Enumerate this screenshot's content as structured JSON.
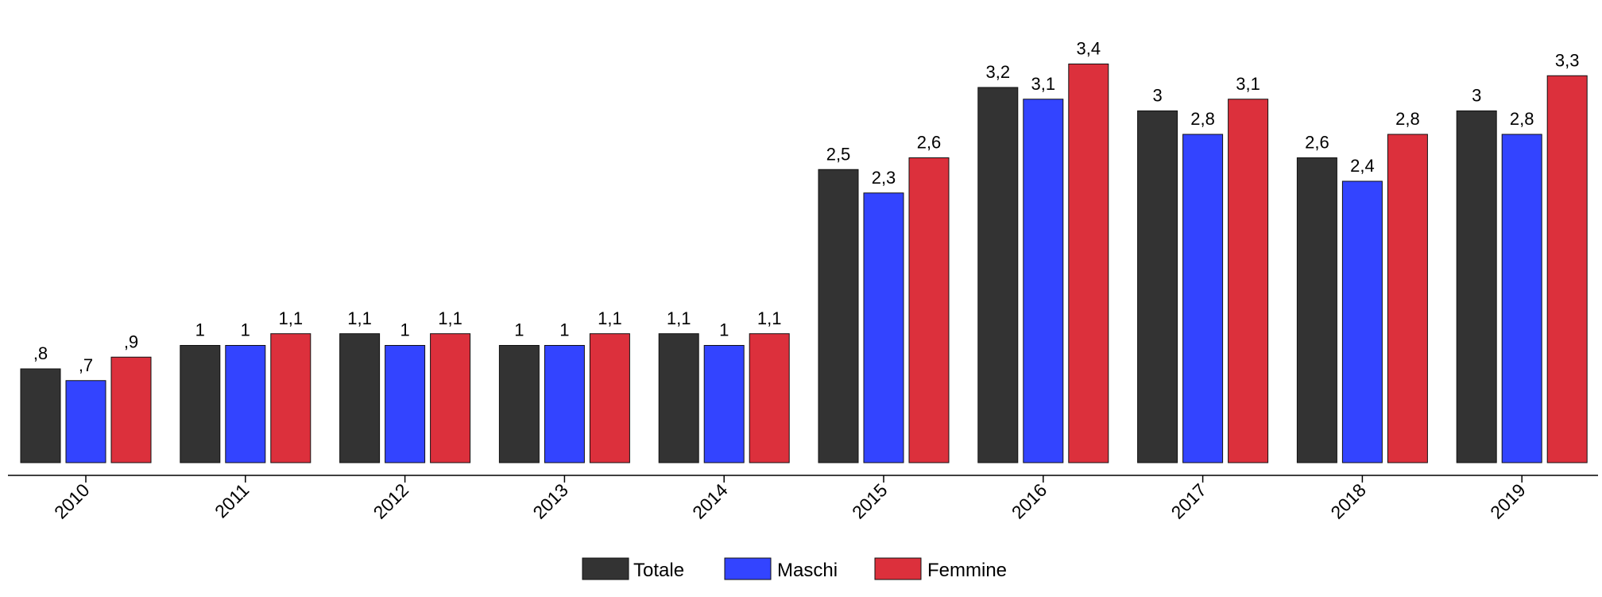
{
  "chart_data": {
    "type": "bar",
    "categories": [
      "2010",
      "2011",
      "2012",
      "2013",
      "2014",
      "2015",
      "2016",
      "2017",
      "2018",
      "2019"
    ],
    "series": [
      {
        "name": "Totale",
        "color": "#333333",
        "values": [
          0.8,
          1,
          1.1,
          1,
          1.1,
          2.5,
          3.2,
          3,
          2.6,
          3
        ],
        "labels": [
          ",8",
          "1",
          "1,1",
          "1",
          "1,1",
          "2,5",
          "3,2",
          "3",
          "2,6",
          "3"
        ]
      },
      {
        "name": "Maschi",
        "color": "#3344FF",
        "values": [
          0.7,
          1,
          1,
          1,
          1,
          2.3,
          3.1,
          2.8,
          2.4,
          2.8
        ],
        "labels": [
          ",7",
          "1",
          "1",
          "1",
          "1",
          "2,3",
          "3,1",
          "2,8",
          "2,4",
          "2,8"
        ]
      },
      {
        "name": "Femmine",
        "color": "#DC303C",
        "values": [
          0.9,
          1.1,
          1.1,
          1.1,
          1.1,
          2.6,
          3.4,
          3.1,
          2.8,
          3.3
        ],
        "labels": [
          ",9",
          "1,1",
          "1,1",
          "1,1",
          "1,1",
          "2,6",
          "3,4",
          "3,1",
          "2,8",
          "3,3"
        ]
      }
    ],
    "ylim": [
      0,
      3.4
    ],
    "grid": false,
    "legend": "bottom-center"
  }
}
